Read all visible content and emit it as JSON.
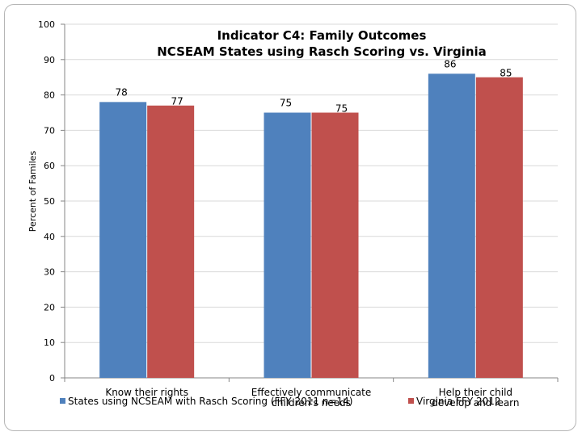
{
  "chart_data": {
    "type": "bar",
    "title": "Indicator C4: Family Outcomes",
    "subtitle": "NCSEAM States using Rasch Scoring vs. Virginia",
    "ylabel": "Percent of Familes",
    "xlabel": "",
    "ylim": [
      0,
      100
    ],
    "yticks": [
      0,
      10,
      20,
      30,
      40,
      50,
      60,
      70,
      80,
      90,
      100
    ],
    "categories": [
      [
        "Know their rights"
      ],
      [
        "Effectively communicate",
        "children's needs"
      ],
      [
        "Help their child",
        "develop and learn"
      ]
    ],
    "series": [
      {
        "name": "States using NCSEAM with Rasch Scoring (FFY 2011 n=14)",
        "color": "#4f81bd",
        "values": [
          78,
          75,
          86
        ]
      },
      {
        "name": "Virginia FFY 2012",
        "color": "#c0504d",
        "values": [
          77,
          75,
          85
        ]
      }
    ],
    "legend_position": "bottom",
    "grid": true
  }
}
